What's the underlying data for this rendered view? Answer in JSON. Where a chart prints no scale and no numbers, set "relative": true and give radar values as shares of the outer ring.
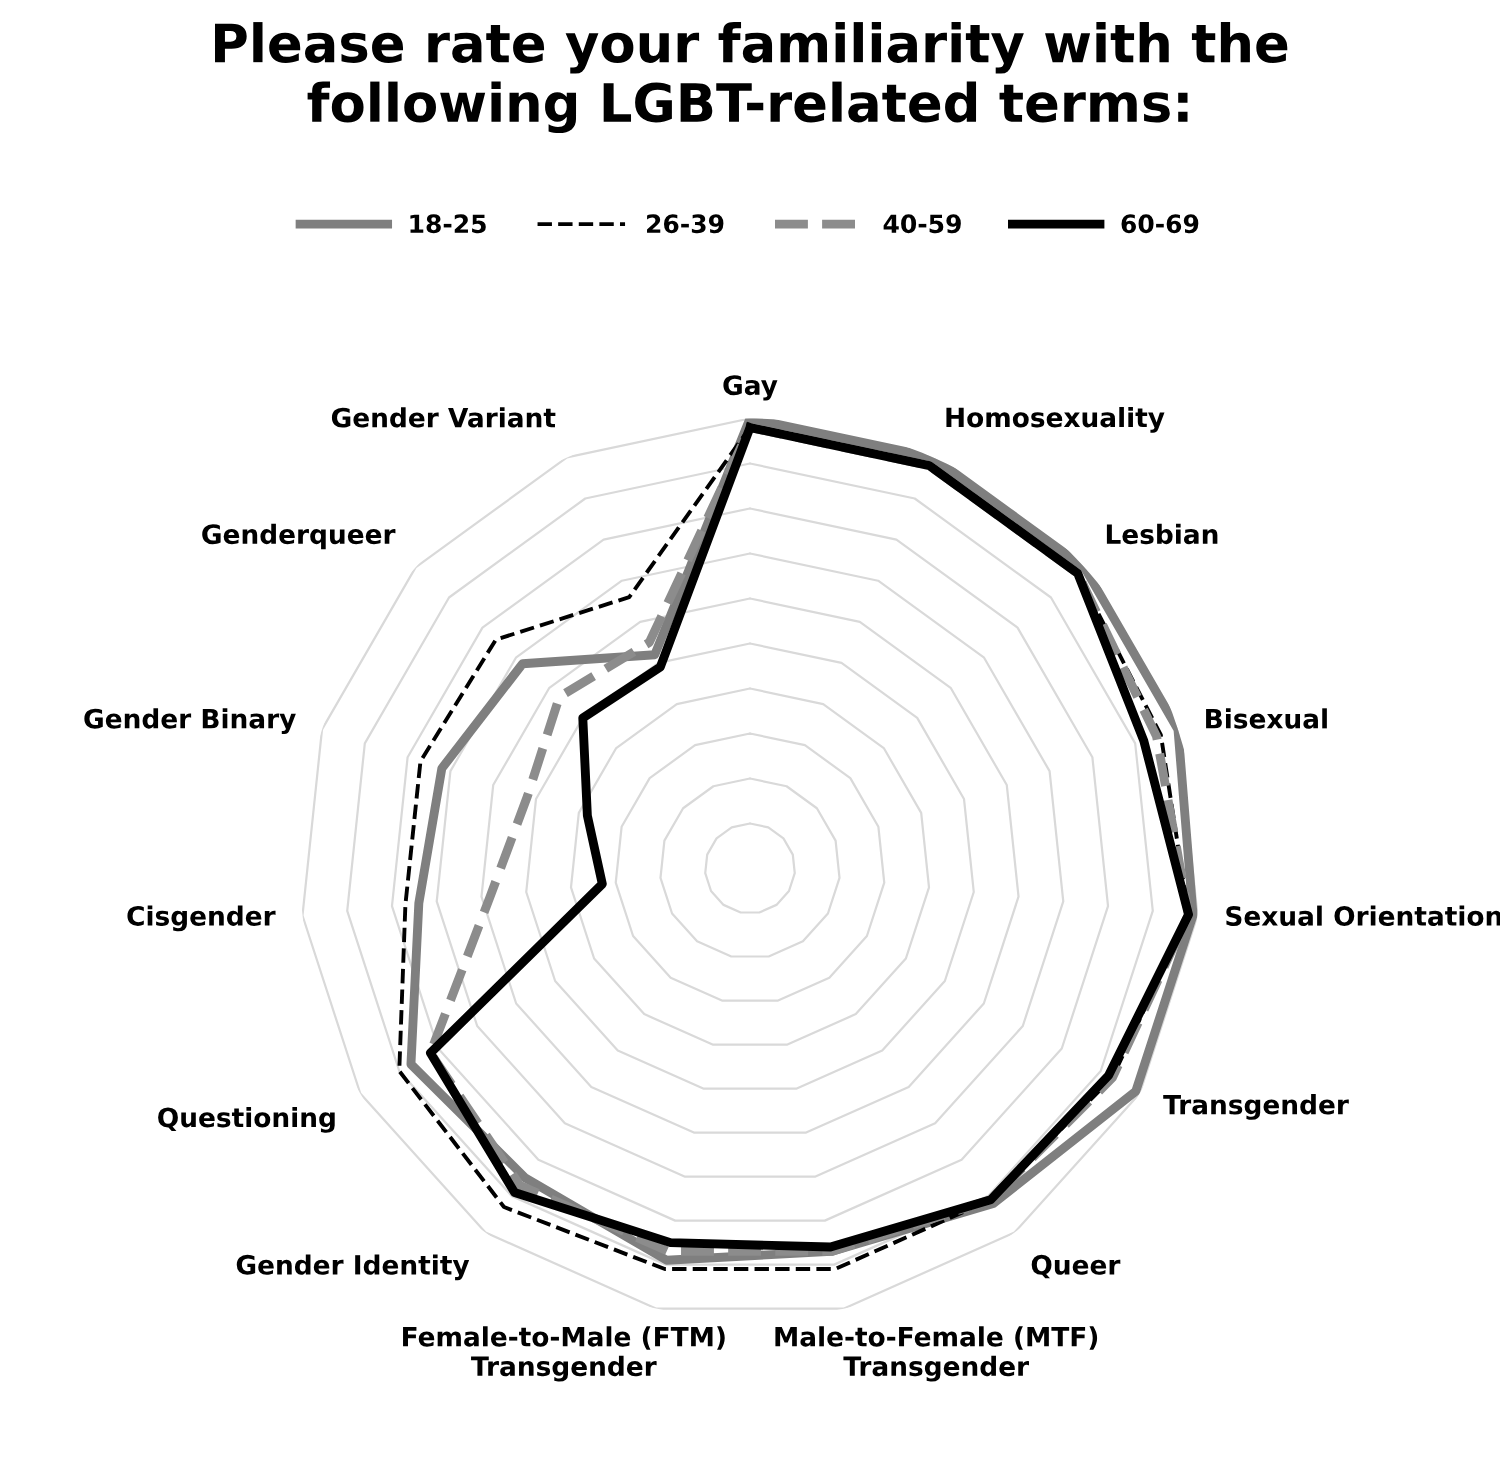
{
  "chart_data": {
    "type": "radar",
    "title": "Please rate your familiarity with the\nfollowing LGBT-related terms:",
    "relative": true,
    "grid": true,
    "legend": "top",
    "categories": [
      "Gay",
      "Homosexuality",
      "Lesbian",
      "Bisexual",
      "Sexual Orientation",
      "Transgender",
      "Queer",
      "Male-to-Female (MTF)\nTransgender",
      "Female-to-Male (FTM)\nTransgender",
      "Gender Identity",
      "Questioning",
      "Cisgender",
      "Gender Binary",
      "Genderqueer",
      "Gender Variant"
    ],
    "series": [
      {
        "name": "18-25",
        "color": "#7f7f7f",
        "line_style": "solid",
        "values": [
          1.0,
          1.0,
          1.0,
          1.0,
          0.99,
          0.99,
          0.92,
          0.87,
          0.89,
          0.85,
          0.87,
          0.74,
          0.72,
          0.68,
          0.52
        ]
      },
      {
        "name": "26-39",
        "color": "#000000",
        "line_style": "dashed",
        "values": [
          0.98,
          0.98,
          0.98,
          0.96,
          0.98,
          0.93,
          0.91,
          0.91,
          0.91,
          0.93,
          0.9,
          0.77,
          0.77,
          0.76,
          0.66
        ]
      },
      {
        "name": "40-59",
        "color": "#8c8c8c",
        "line_style": "dashed",
        "values": [
          0.98,
          0.98,
          0.98,
          0.95,
          0.98,
          0.93,
          0.91,
          0.87,
          0.87,
          0.87,
          0.82,
          0.58,
          0.52,
          0.57,
          0.55
        ]
      },
      {
        "name": "60-69",
        "color": "#000000",
        "line_style": "solid",
        "values": [
          0.98,
          0.98,
          0.98,
          0.92,
          0.98,
          0.92,
          0.91,
          0.86,
          0.85,
          0.89,
          0.82,
          0.33,
          0.38,
          0.5,
          0.49
        ]
      }
    ]
  }
}
